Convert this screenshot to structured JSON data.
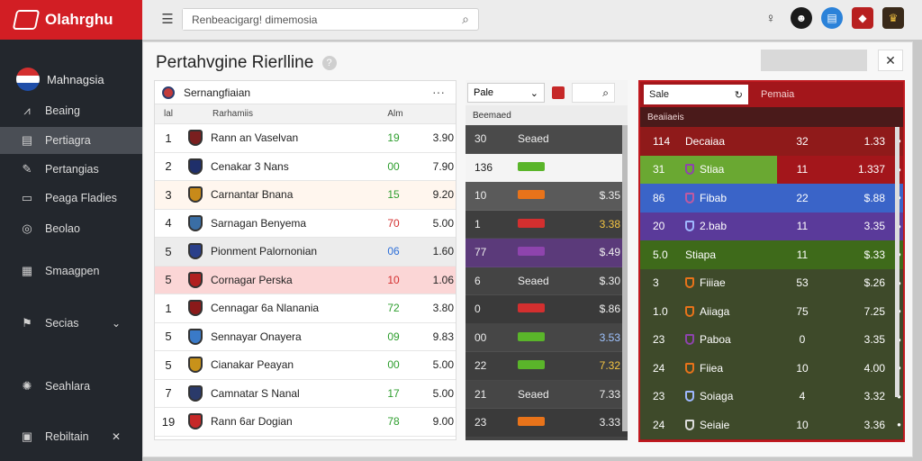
{
  "app": {
    "brand": "Olahrghu"
  },
  "sidebar": {
    "user": "Mahnagsia",
    "items": [
      {
        "label": "Beaing",
        "icon": "chart-icon"
      },
      {
        "label": "Pertiagra",
        "icon": "document-icon",
        "active": true
      },
      {
        "label": "Pertangias",
        "icon": "edit-icon"
      },
      {
        "label": "Peaga Fladies",
        "icon": "list-icon"
      },
      {
        "label": "Beolao",
        "icon": "globe-icon"
      },
      {
        "label": "Smaagpen",
        "icon": "grid-icon"
      },
      {
        "label": "Secias",
        "icon": "flag-icon"
      },
      {
        "label": "Seahlara",
        "icon": "settings-icon"
      },
      {
        "label": "Rebiltain",
        "icon": "box-icon"
      }
    ]
  },
  "topbar": {
    "search_value": "Renbeacigarg! dimemosia"
  },
  "page": {
    "title": "Pertahvgine Rierlline"
  },
  "tableA": {
    "title": "Sernangfiaian",
    "col_rank": "lal",
    "col_team": "Rarhamiis",
    "col_pts": "Alm",
    "rows": [
      {
        "rank": "1",
        "team": "Rann an Vaselvan",
        "pts": "19",
        "val": "3.90",
        "pts_color": "#2e9e2e",
        "shield": "#7a1f1f",
        "bg": "#ffffff"
      },
      {
        "rank": "2",
        "team": "Cenakar 3 Nans",
        "pts": "00",
        "val": "7.90",
        "pts_color": "#2e9e2e",
        "shield": "#1f2f6a",
        "bg": "#ffffff"
      },
      {
        "rank": "3",
        "team": "Carnantar Bnana",
        "pts": "15",
        "val": "9.20",
        "pts_color": "#2e9e2e",
        "shield": "#c88a1a",
        "bg": "#fff6ee"
      },
      {
        "rank": "4",
        "team": "Sarnagan Benyema",
        "pts": "70",
        "val": "5.00",
        "pts_color": "#d32f2f",
        "shield": "#3a6ea5",
        "bg": "#ffffff"
      },
      {
        "rank": "5",
        "team": "Pionment Palornonian",
        "pts": "06",
        "val": "1.60",
        "pts_color": "#2e6fd8",
        "shield": "#2a3f8a",
        "bg": "#ececec"
      },
      {
        "rank": "5",
        "team": "Cornagar Perska",
        "pts": "10",
        "val": "1.06",
        "pts_color": "#d32f2f",
        "shield": "#b02020",
        "bg": "#fbd6d6"
      },
      {
        "rank": "1",
        "team": "Cennagar 6a Nlanania",
        "pts": "72",
        "val": "3.80",
        "pts_color": "#2e9e2e",
        "shield": "#8b1a1a",
        "bg": "#ffffff"
      },
      {
        "rank": "5",
        "team": "Sennayar Onayera",
        "pts": "09",
        "val": "9.83",
        "pts_color": "#2e9e2e",
        "shield": "#3a7ac8",
        "bg": "#ffffff"
      },
      {
        "rank": "5",
        "team": "Cianakar Peayan",
        "pts": "00",
        "val": "5.00",
        "pts_color": "#2e9e2e",
        "shield": "#c8921a",
        "bg": "#ffffff"
      },
      {
        "rank": "7",
        "team": "Camnatar S Nanal",
        "pts": "17",
        "val": "5.00",
        "pts_color": "#2e9e2e",
        "shield": "#2a3a6a",
        "bg": "#ffffff"
      },
      {
        "rank": "19",
        "team": "Rann 6ar Dogian",
        "pts": "78",
        "val": "9.00",
        "pts_color": "#2e9e2e",
        "shield": "#c62828",
        "bg": "#ffffff"
      }
    ]
  },
  "tableB": {
    "select_value": "Pale",
    "col_label": "Beemaed",
    "rows": [
      {
        "a": "30",
        "b": "Seaed",
        "chip": "",
        "c": "",
        "bg": "#4a4a4a"
      },
      {
        "a": "136",
        "b": "",
        "chip": "#5ab52a",
        "c": "",
        "bg": "#f4f4f4",
        "dark": true
      },
      {
        "a": "10",
        "b": "",
        "chip": "#e8731a",
        "c": "$.35",
        "bg": "#5a5a5a"
      },
      {
        "a": "1",
        "b": "",
        "chip": "#d32f2f",
        "c": "3.38",
        "bg": "#3e3e3e",
        "c_color": "#f5c542"
      },
      {
        "a": "77",
        "b": "",
        "chip": "#8e44ad",
        "c": "$.49",
        "bg": "#5b3a7a"
      },
      {
        "a": "6",
        "b": "Seaed",
        "chip": "",
        "c": "$.30",
        "bg": "#444444"
      },
      {
        "a": "0",
        "b": "",
        "chip": "#d32f2f",
        "c": "$.86",
        "bg": "#3a3a3a"
      },
      {
        "a": "00",
        "b": "",
        "chip": "#5ab52a",
        "c": "3.53",
        "bg": "#464646",
        "c_color": "#9fc3ff"
      },
      {
        "a": "22",
        "b": "",
        "chip": "#5ab52a",
        "c": "7.32",
        "bg": "#3e3e3e",
        "c_color": "#f5c542"
      },
      {
        "a": "21",
        "b": "Seaed",
        "chip": "",
        "c": "7.33",
        "bg": "#464646"
      },
      {
        "a": "23",
        "b": "",
        "chip": "#e8731a",
        "c": "3.33",
        "bg": "#3a3a3a"
      }
    ]
  },
  "tableC": {
    "select_value": "Sale",
    "title": "Pemaia",
    "col_label": "Beaiiaeis",
    "rows": [
      {
        "a": "114",
        "name": "Decaiaa",
        "b": "32",
        "c": "1.33",
        "bg": "#8f1a1a",
        "shield": ""
      },
      {
        "a": "31",
        "name": "Stiaa",
        "b": "11",
        "c": "1.337",
        "bg": "#6aa832",
        "bg2": "#a3161b",
        "shield": "#8e44ad"
      },
      {
        "a": "86",
        "name": "Fibab",
        "b": "22",
        "c": "$.88",
        "bg": "#3a64c8",
        "shield": "#c05aa0"
      },
      {
        "a": "20",
        "name": "2.bab",
        "b": "11",
        "c": "3.35",
        "bg": "#5a3a9a",
        "shield": "#9fb8ff"
      },
      {
        "a": "5.0",
        "name": "Stiapa",
        "b": "11",
        "c": "$.33",
        "bg": "#3e6a1a",
        "shield": ""
      },
      {
        "a": "3",
        "name": "Fiiiae",
        "b": "53",
        "c": "$.26",
        "bg": "#3e4a2a",
        "shield": "#e8731a"
      },
      {
        "a": "1.0",
        "name": "Aiiaga",
        "b": "75",
        "c": "7.25",
        "bg": "#3e4a2a",
        "shield": "#e8731a"
      },
      {
        "a": "23",
        "name": "Paboa",
        "b": "0",
        "c": "3.35",
        "bg": "#3e4a2a",
        "shield": "#8e44ad"
      },
      {
        "a": "24",
        "name": "Fiiea",
        "b": "10",
        "c": "4.00",
        "bg": "#3e4a2a",
        "shield": "#e8731a"
      },
      {
        "a": "23",
        "name": "Soiaga",
        "b": "4",
        "c": "3.32",
        "bg": "#3e4a2a",
        "shield": "#9fb8ff"
      },
      {
        "a": "24",
        "name": "Seiaie",
        "b": "10",
        "c": "3.36",
        "bg": "#3e4a2a",
        "shield": "#dddddd"
      }
    ]
  }
}
